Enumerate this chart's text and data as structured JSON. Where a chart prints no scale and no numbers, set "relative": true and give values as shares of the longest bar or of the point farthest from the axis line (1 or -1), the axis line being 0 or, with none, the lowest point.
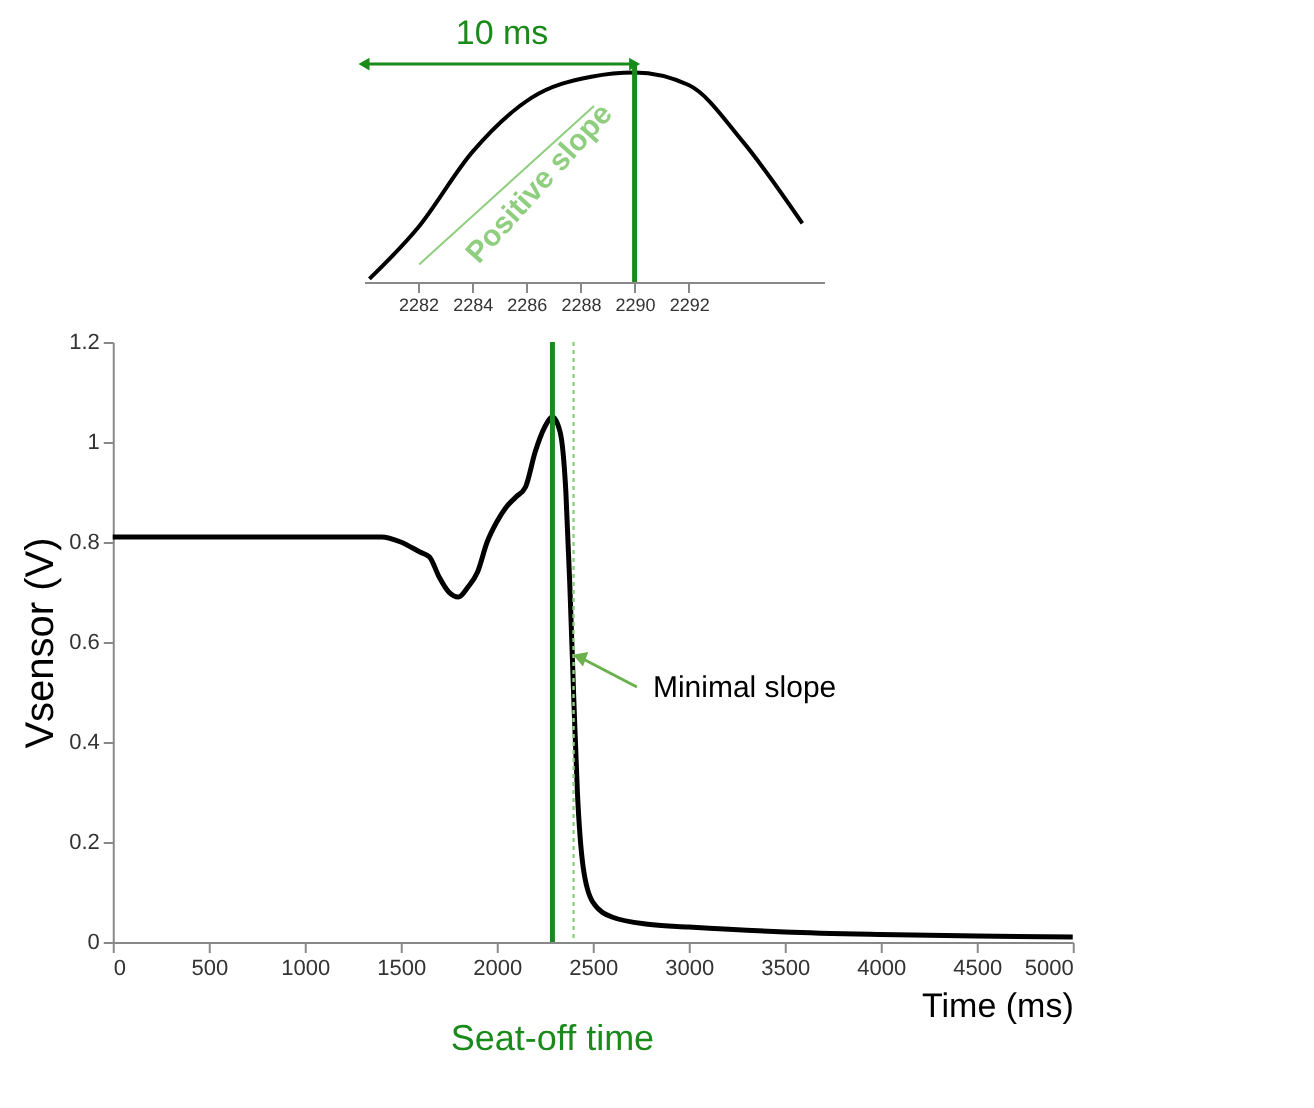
{
  "chart_data": [
    {
      "type": "line",
      "relative": true,
      "x": [
        2280.2,
        2282.0,
        2284.0,
        2286.2,
        2288.4,
        2290.0,
        2292.0,
        2294.0,
        2296.2
      ],
      "series": [
        {
          "color": "#000000",
          "values": [
            0.015,
            0.26,
            0.62,
            0.88,
            0.98,
            1.0,
            0.94,
            0.67,
            0.28
          ]
        }
      ],
      "xlim": [
        2280,
        2297
      ],
      "xticks": [
        2282,
        2284,
        2286,
        2288,
        2290,
        2292
      ],
      "ref_lines": [
        {
          "axis": "x",
          "value": 2290,
          "color": "#1a8a1a"
        }
      ],
      "annotations": [
        "10 ms",
        "Positive slope"
      ],
      "grid": false
    },
    {
      "type": "line",
      "x": [
        0,
        200,
        400,
        600,
        800,
        1000,
        1200,
        1300,
        1400,
        1500,
        1600,
        1650,
        1700,
        1750,
        1800,
        1850,
        1900,
        1950,
        2000,
        2050,
        2100,
        2150,
        2200,
        2250,
        2290,
        2330,
        2360,
        2380,
        2400,
        2420,
        2450,
        2500,
        2600,
        2800,
        3000,
        3500,
        4000,
        4500,
        5000
      ],
      "series": [
        {
          "color": "#000000",
          "values": [
            0.81,
            0.81,
            0.81,
            0.81,
            0.81,
            0.81,
            0.81,
            0.81,
            0.81,
            0.8,
            0.78,
            0.77,
            0.73,
            0.7,
            0.69,
            0.71,
            0.74,
            0.8,
            0.84,
            0.87,
            0.89,
            0.91,
            0.98,
            1.03,
            1.05,
            1.02,
            0.9,
            0.72,
            0.5,
            0.3,
            0.15,
            0.08,
            0.05,
            0.035,
            0.03,
            0.02,
            0.015,
            0.012,
            0.01
          ]
        }
      ],
      "xlabel": "Time (ms)",
      "ylabel": "Vsensor (V)",
      "xlim": [
        0,
        5000
      ],
      "xticks": [
        0,
        500,
        1000,
        1500,
        2000,
        2500,
        3000,
        3500,
        4000,
        4500,
        5000
      ],
      "ylim": [
        0,
        1.2
      ],
      "yticks": [
        0,
        0.2,
        0.4,
        0.6,
        0.8,
        1,
        1.2
      ],
      "ref_lines": [
        {
          "axis": "x",
          "value": 2290,
          "label": "Seat-off time",
          "color": "#1a8a1a"
        },
        {
          "axis": "x",
          "value": 2400,
          "color": "#8fce7f",
          "line_style": "dotted"
        }
      ],
      "annotations": [
        {
          "text": "Minimal slope",
          "x": 2400,
          "y": 0.57
        }
      ],
      "grid": false
    }
  ]
}
